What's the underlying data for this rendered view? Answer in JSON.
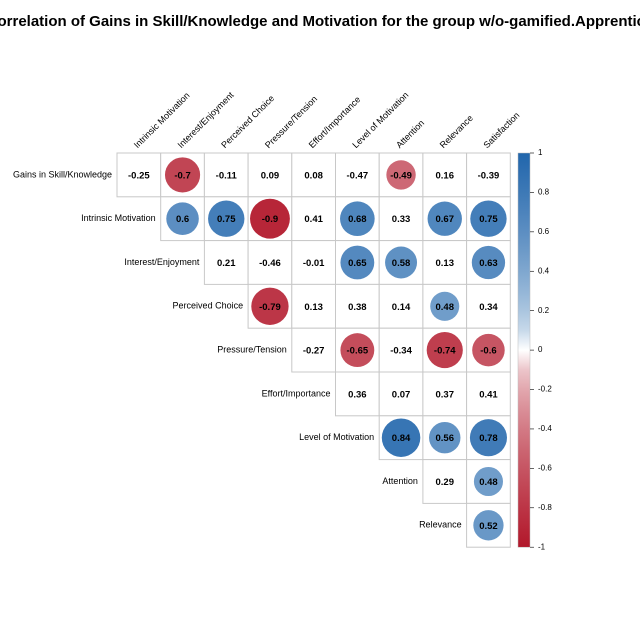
{
  "chart_data": {
    "type": "corrplot",
    "title": "Correlation of Gains in Skill/Knowledge and Motivation for the group w/o-gamified.Apprentice",
    "rows": [
      "Gains in Skill/Knowledge",
      "Intrinsic Motivation",
      "Interest/Enjoyment",
      "Perceived Choice",
      "Pressure/Tension",
      "Effort/Importance",
      "Level of Motivation",
      "Attention",
      "Relevance"
    ],
    "columns": [
      "Intrinsic Motivation",
      "Interest/Enjoyment",
      "Perceived Choice",
      "Pressure/Tension",
      "Effort/Importance",
      "Level of Motivation",
      "Attention",
      "Relevance",
      "Satisfaction"
    ],
    "values": [
      [
        -0.25,
        -0.7,
        -0.11,
        0.09,
        0.08,
        -0.47,
        -0.49,
        0.16,
        -0.39
      ],
      [
        null,
        0.6,
        0.75,
        -0.9,
        0.41,
        0.68,
        0.33,
        0.67,
        0.75
      ],
      [
        null,
        null,
        0.21,
        -0.46,
        -0.01,
        0.65,
        0.58,
        0.13,
        0.63
      ],
      [
        null,
        null,
        null,
        -0.79,
        0.13,
        0.38,
        0.14,
        0.48,
        0.34
      ],
      [
        null,
        null,
        null,
        null,
        -0.27,
        -0.65,
        -0.34,
        -0.74,
        -0.6
      ],
      [
        null,
        null,
        null,
        null,
        null,
        0.36,
        0.07,
        0.37,
        0.41
      ],
      [
        null,
        null,
        null,
        null,
        null,
        null,
        0.84,
        0.56,
        0.78
      ],
      [
        null,
        null,
        null,
        null,
        null,
        null,
        null,
        0.29,
        0.48
      ],
      [
        null,
        null,
        null,
        null,
        null,
        null,
        null,
        null,
        0.52
      ]
    ],
    "significant": [
      [
        false,
        true,
        false,
        false,
        false,
        false,
        true,
        false,
        false
      ],
      [
        null,
        true,
        true,
        true,
        false,
        true,
        false,
        true,
        true
      ],
      [
        null,
        null,
        false,
        false,
        false,
        true,
        true,
        false,
        true
      ],
      [
        null,
        null,
        null,
        true,
        false,
        false,
        false,
        true,
        false
      ],
      [
        null,
        null,
        null,
        null,
        false,
        true,
        false,
        true,
        true
      ],
      [
        null,
        null,
        null,
        null,
        null,
        false,
        false,
        false,
        false
      ],
      [
        null,
        null,
        null,
        null,
        null,
        null,
        true,
        true,
        true
      ],
      [
        null,
        null,
        null,
        null,
        null,
        null,
        null,
        false,
        true
      ],
      [
        null,
        null,
        null,
        null,
        null,
        null,
        null,
        null,
        true
      ]
    ],
    "colors": {
      "low": "#b2182b",
      "mid": "#ffffff",
      "high": "#2166ac"
    },
    "clim": [
      -1,
      1
    ],
    "cticks": [
      1,
      0.8,
      0.6,
      0.4,
      0.2,
      0,
      -0.2,
      -0.4,
      -0.6,
      -0.8,
      -1
    ]
  }
}
